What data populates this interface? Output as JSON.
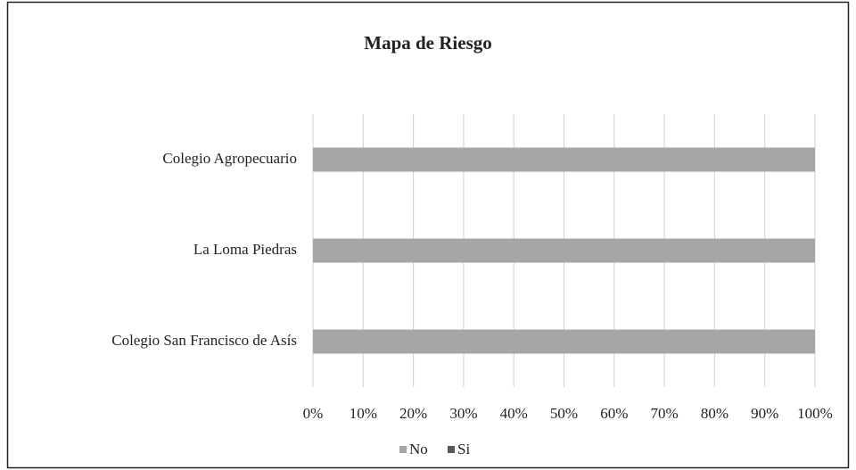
{
  "chart_data": {
    "type": "stacked_barh",
    "title": "Mapa de Riesgo",
    "categories": [
      "Colegio Agropecuario",
      "La Loma Piedras",
      "Colegio San Francisco de Asís"
    ],
    "series": [
      {
        "name": "No",
        "color": "#a6a6a6",
        "values": [
          100,
          100,
          100
        ]
      },
      {
        "name": "Si",
        "color": "#595959",
        "values": [
          0,
          0,
          0
        ]
      }
    ],
    "xlim": [
      0,
      100
    ],
    "xticks": [
      {
        "value": 0,
        "label": "0%"
      },
      {
        "value": 10,
        "label": "10%"
      },
      {
        "value": 20,
        "label": "20%"
      },
      {
        "value": 30,
        "label": "30%"
      },
      {
        "value": 40,
        "label": "40%"
      },
      {
        "value": 50,
        "label": "50%"
      },
      {
        "value": 60,
        "label": "60%"
      },
      {
        "value": 70,
        "label": "70%"
      },
      {
        "value": 80,
        "label": "80%"
      },
      {
        "value": 90,
        "label": "90%"
      },
      {
        "value": 100,
        "label": "100%"
      }
    ],
    "grid": true,
    "legend": "bottom"
  }
}
